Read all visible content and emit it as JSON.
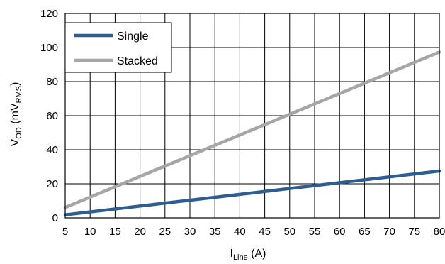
{
  "chart_data": {
    "type": "line",
    "xlabel": {
      "main": "I",
      "sub": "Line",
      "tail": " (A)"
    },
    "ylabel": {
      "main": "V",
      "sub1": "OD",
      "mid": " (mV",
      "sub2": "RMS",
      "tail": ")"
    },
    "xlim": [
      5,
      80
    ],
    "ylim": [
      0,
      120
    ],
    "xticks": [
      "5",
      "10",
      "15",
      "20",
      "25",
      "30",
      "35",
      "40",
      "45",
      "50",
      "55",
      "60",
      "65",
      "70",
      "75",
      "80"
    ],
    "yticks": [
      "0",
      "20",
      "40",
      "60",
      "80",
      "100",
      "120"
    ],
    "grid": true,
    "legend_position": "top-left",
    "series": [
      {
        "name": "Single",
        "color": "#2E5E91",
        "x": [
          5,
          80
        ],
        "y": [
          1.8,
          27.5
        ]
      },
      {
        "name": "Stacked",
        "color": "#A6A6A6",
        "x": [
          5,
          80
        ],
        "y": [
          6.1,
          97.3
        ]
      }
    ]
  }
}
